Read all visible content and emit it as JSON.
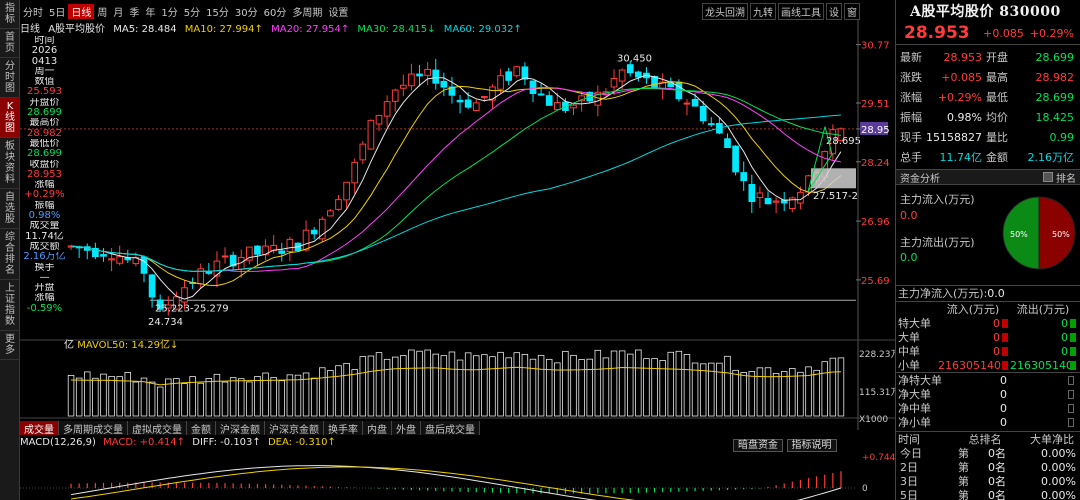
{
  "left_tabs": [
    "指\n标",
    "首\n页",
    "分\n时\n图",
    "K\n线\n图",
    "板\n块\n资\n料",
    "自\n选\n股",
    "综\n合\n排\n名",
    "上\n证\n指\n数",
    "更\n多"
  ],
  "left_tabs_active": 3,
  "toolbar": {
    "items": [
      "分时",
      "5日",
      "日线",
      "周",
      "月",
      "季",
      "年",
      "1分",
      "5分",
      "15分",
      "30分",
      "60分",
      "多周期",
      "设置"
    ],
    "active": "日线",
    "right_items": [
      "龙头回溯",
      "九转",
      "画线工具",
      "设",
      "窗"
    ]
  },
  "ma_legend": {
    "name": "日线",
    "stock": "A股平均股价",
    "ma5": "MA5: 28.484",
    "ma10": "MA10: 27.994↑",
    "ma20": "MA20: 27.954↑",
    "ma30": "MA30: 28.415↓",
    "ma60": "MA60: 29.032↑"
  },
  "data_col": [
    {
      "t": "时间",
      "c": "white"
    },
    {
      "t": "2026",
      "c": "white"
    },
    {
      "t": "0413",
      "c": "white"
    },
    {
      "t": "周一",
      "c": "white"
    },
    {
      "t": "数值",
      "c": "white"
    },
    {
      "t": "25.593",
      "c": "red"
    },
    {
      "t": "开盘价",
      "c": "white"
    },
    {
      "t": "28.699",
      "c": "green"
    },
    {
      "t": "最高价",
      "c": "white"
    },
    {
      "t": "28.982",
      "c": "red"
    },
    {
      "t": "最低价",
      "c": "white"
    },
    {
      "t": "28.699",
      "c": "green"
    },
    {
      "t": "收盘价",
      "c": "white"
    },
    {
      "t": "28.953",
      "c": "red"
    },
    {
      "t": "涨幅",
      "c": "white"
    },
    {
      "t": "+0.29%",
      "c": "red"
    },
    {
      "t": "振幅",
      "c": "white"
    },
    {
      "t": "0.98%",
      "c": "blue"
    },
    {
      "t": "成交量",
      "c": "white"
    },
    {
      "t": "11.74亿",
      "c": "white"
    },
    {
      "t": "成交额",
      "c": "white"
    },
    {
      "t": "2.16万亿",
      "c": "blue"
    },
    {
      "t": "换手",
      "c": "white"
    },
    {
      "t": "—",
      "c": "white"
    },
    {
      "t": "开盘",
      "c": "white"
    },
    {
      "t": "涨幅",
      "c": "white"
    },
    {
      "t": "-0.59%",
      "c": "green"
    }
  ],
  "price_axis": {
    "labels": [
      "30.77",
      "29.51",
      "28.95",
      "28.24",
      "26.96",
      "25.69"
    ],
    "current": "28.95"
  },
  "annotations": {
    "high": "30.450",
    "low": "24.734",
    "range_low": "25.223-25.279",
    "range_right": "27.517-2",
    "last_label": "28.695"
  },
  "volume": {
    "legend_unit": "亿",
    "legend": "MAVOL50: 14.29亿↓",
    "axis": [
      "228.23万",
      "115.31万",
      "X1000"
    ]
  },
  "ind_tabs": [
    "成交量",
    "多周期成交量",
    "虚拟成交量",
    "金额",
    "沪深金额",
    "沪深京金额",
    "换手率",
    "内盘",
    "外盘",
    "盘后成交量"
  ],
  "ind_tabs_active": "成交量",
  "macd": {
    "name": "MACD(12,26,9)",
    "macd": "MACD: +0.414↑",
    "diff": "DIFF: -0.103↑",
    "dea": "DEA: -0.310↑",
    "buttons": [
      "暗盘资金",
      "指标说明"
    ],
    "axis": [
      "+0.744",
      "0"
    ]
  },
  "panel": {
    "title": "A股平均股价 830000",
    "price": "28.953",
    "change": "+0.085",
    "pct": "+0.29%",
    "quotes": [
      {
        "k": "最新",
        "v": "28.953",
        "vc": "red",
        "k2": "开盘",
        "v2": "28.699",
        "v2c": "green"
      },
      {
        "k": "涨跌",
        "v": "+0.085",
        "vc": "red",
        "k2": "最高",
        "v2": "28.982",
        "v2c": "red"
      },
      {
        "k": "涨幅",
        "v": "+0.29%",
        "vc": "red",
        "k2": "最低",
        "v2": "28.699",
        "v2c": "green"
      },
      {
        "k": "振幅",
        "v": "0.98%",
        "vc": "white",
        "k2": "均价",
        "v2": "18.425",
        "v2c": "green"
      },
      {
        "k": "现手",
        "v": "15158827",
        "vc": "white",
        "k2": "量比",
        "v2": "0.99",
        "v2c": "green"
      },
      {
        "k": "总手",
        "v": "11.74亿",
        "vc": "cyan",
        "k2": "金额",
        "v2": "2.16万亿",
        "v2c": "cyan"
      }
    ],
    "fund_title": "资金分析",
    "rank_label": "排名",
    "main_in_label": "主力流入(万元)",
    "main_in": "0.0",
    "main_out_label": "主力流出(万元)",
    "main_out": "0.0",
    "pie_left": "50%",
    "pie_right": "50%",
    "pie_in_share": 0.5,
    "net_label": "主力净流入(万元):",
    "net_value": "0.0",
    "flow_head": [
      "流入(万元)",
      "流出(万元)"
    ],
    "flow_rows": [
      {
        "k": "特大单",
        "a": "0",
        "b": "0"
      },
      {
        "k": "大单",
        "a": "0",
        "b": "0"
      },
      {
        "k": "中单",
        "a": "0",
        "b": "0"
      },
      {
        "k": "小单",
        "a": "216305140",
        "b": "216305140"
      }
    ],
    "net_rows": [
      {
        "k": "净特大单",
        "v": "0"
      },
      {
        "k": "净大单",
        "v": "0"
      },
      {
        "k": "净中单",
        "v": "0"
      },
      {
        "k": "净小单",
        "v": "0"
      }
    ],
    "rank_head": [
      "时间",
      "总排名",
      "大单净比"
    ],
    "rank_rows": [
      {
        "d": "今日",
        "r": "第",
        "n": "0名",
        "p": "0.00%"
      },
      {
        "d": "2日",
        "r": "第",
        "n": "0名",
        "p": "0.00%"
      },
      {
        "d": "3日",
        "r": "第",
        "n": "0名",
        "p": "0.00%"
      },
      {
        "d": "5日",
        "r": "第",
        "n": "0名",
        "p": "0.00%"
      }
    ]
  }
}
